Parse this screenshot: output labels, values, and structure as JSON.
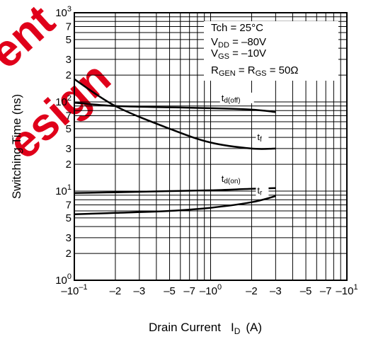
{
  "watermark": {
    "lines": [
      "ent",
      "esign"
    ],
    "color": "#e0001a"
  },
  "chart_data": {
    "type": "line",
    "title": "",
    "xlabel_main": "Drain Current",
    "xlabel_symbol": "I",
    "xlabel_sub": "D",
    "xlabel_unit": "(A)",
    "ylabel": "Switching Time  (ns)",
    "x_scale": "log (negative values, magnitude increases rightward)",
    "y_scale": "log",
    "xlim": [
      -0.1,
      -10
    ],
    "ylim": [
      1,
      1000
    ],
    "grid": true,
    "conditions": {
      "line1": "Tch = 25°C",
      "line2_pre": "V",
      "line2_sub": "DD",
      "line2_post": " = –80V",
      "line3_pre": "V",
      "line3_sub": "GS",
      "line3_post": " = –10V",
      "line4_pre": "R",
      "line4_sub": "GEN",
      "line4_mid": " = R",
      "line4_sub2": "GS",
      "line4_post": " = 50Ω"
    },
    "x_ticks": [
      {
        "value": -0.1,
        "base": "–10",
        "exp": "–1"
      },
      {
        "value": -0.2,
        "label": "–2"
      },
      {
        "value": -0.3,
        "label": "–3"
      },
      {
        "value": -0.5,
        "label": "–5"
      },
      {
        "value": -0.7,
        "label": "–7"
      },
      {
        "value": -1,
        "base": "–10",
        "exp": "0"
      },
      {
        "value": -2,
        "label": "–2"
      },
      {
        "value": -3,
        "label": "–3"
      },
      {
        "value": -5,
        "label": "–5"
      },
      {
        "value": -7,
        "label": "–7"
      },
      {
        "value": -10,
        "base": "–10",
        "exp": "1"
      }
    ],
    "y_ticks": [
      {
        "value": 1,
        "base": "10",
        "exp": "0"
      },
      {
        "value": 2,
        "label": "2"
      },
      {
        "value": 3,
        "label": "3"
      },
      {
        "value": 5,
        "label": "5"
      },
      {
        "value": 7,
        "label": "7"
      },
      {
        "value": 10,
        "base": "10",
        "exp": "1"
      },
      {
        "value": 20,
        "label": "2"
      },
      {
        "value": 30,
        "label": "3"
      },
      {
        "value": 50,
        "label": "5"
      },
      {
        "value": 70,
        "label": "7"
      },
      {
        "value": 100,
        "base": "10",
        "exp": "2"
      },
      {
        "value": 200,
        "label": "2"
      },
      {
        "value": 300,
        "label": "3"
      },
      {
        "value": 500,
        "label": "5"
      },
      {
        "value": 700,
        "label": "7"
      },
      {
        "value": 1000,
        "base": "10",
        "exp": "3"
      }
    ],
    "series": [
      {
        "name_main": "t",
        "name_sub": "d(off)",
        "x": [
          -0.1,
          -0.2,
          -0.5,
          -1,
          -2,
          -3
        ],
        "y": [
          98,
          90,
          87,
          85,
          82,
          77
        ]
      },
      {
        "name_main": "t",
        "name_sub": "f",
        "x": [
          -0.1,
          -0.2,
          -0.5,
          -1,
          -2,
          -3
        ],
        "y": [
          180,
          90,
          50,
          35,
          30,
          30
        ]
      },
      {
        "name_main": "t",
        "name_sub": "d(on)",
        "x": [
          -0.1,
          -0.2,
          -0.5,
          -1,
          -2,
          -3
        ],
        "y": [
          9.5,
          9.7,
          10.0,
          10.2,
          10.6,
          10.8
        ]
      },
      {
        "name_main": "t",
        "name_sub": "r",
        "x": [
          -0.1,
          -0.2,
          -0.5,
          -1,
          -2,
          -3
        ],
        "y": [
          5.5,
          5.7,
          6.0,
          6.5,
          7.5,
          8.8
        ]
      }
    ]
  }
}
